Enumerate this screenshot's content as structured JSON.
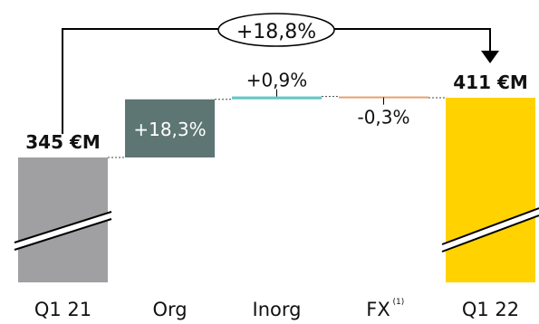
{
  "chart_data": {
    "type": "waterfall",
    "unit": "€M",
    "categories": [
      "Q1 21",
      "Org",
      "Inorg",
      "FX",
      "Q1 22"
    ],
    "footnote_marker": "(1)",
    "start": {
      "category": "Q1 21",
      "value": 345,
      "label": "345 €M",
      "color": "#a0a0a2"
    },
    "end": {
      "category": "Q1 22",
      "value": 411,
      "label": "411 €M",
      "color": "#ffd200"
    },
    "steps": [
      {
        "category": "Org",
        "change_pct": 18.3,
        "label": "+18,3%",
        "color": "#5e7673",
        "label_inside": true
      },
      {
        "category": "Inorg",
        "change_pct": 0.9,
        "label": "+0,9%",
        "color": "#66c7c7"
      },
      {
        "category": "FX",
        "change_pct": -0.3,
        "label": "-0,3%",
        "color": "#e8a070"
      }
    ],
    "total_change": {
      "label": "+18,8%",
      "change_pct": 18.8
    },
    "axis_break": true
  }
}
